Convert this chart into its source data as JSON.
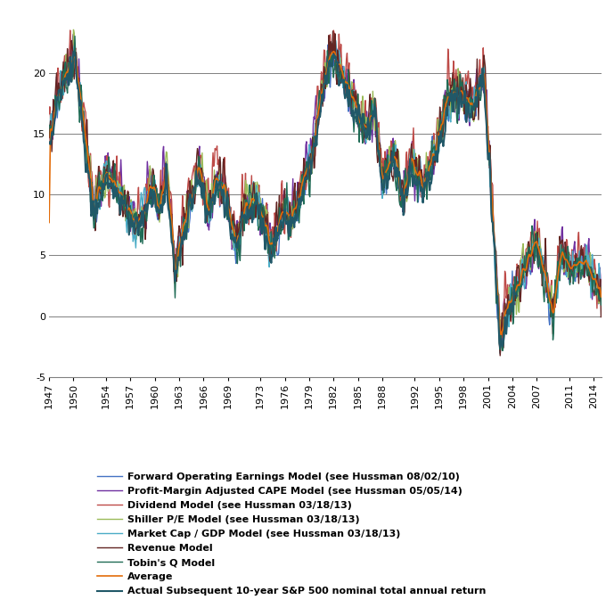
{
  "xlim": [
    1947,
    2015
  ],
  "ylim": [
    -5,
    25
  ],
  "yticks": [
    -5,
    0,
    5,
    10,
    15,
    20
  ],
  "xticks": [
    1947,
    1950,
    1954,
    1957,
    1960,
    1963,
    1966,
    1969,
    1973,
    1976,
    1979,
    1982,
    1985,
    1988,
    1992,
    1995,
    1998,
    2001,
    2004,
    2007,
    2011,
    2014
  ],
  "legend_labels": [
    "Forward Operating Earnings Model (see Hussman 08/02/10)",
    "Profit-Margin Adjusted CAPE Model (see Hussman 05/05/14)",
    "Dividend Model (see Hussman 03/18/13)",
    "Shiller P/E Model (see Hussman 03/18/13)",
    "Market Cap / GDP Model (see Hussman 03/18/13)",
    "Revenue Model",
    "Tobin's Q Model",
    "Average",
    "Actual Subsequent 10-year S&P 500 nominal total annual return"
  ],
  "legend_colors": [
    "#4472C4",
    "#7030A0",
    "#BE4B48",
    "#9BBB59",
    "#4BACC6",
    "#632523",
    "#1F6B55",
    "#E36C09",
    "#215868"
  ],
  "line_widths": [
    1.0,
    1.0,
    1.0,
    1.0,
    1.0,
    1.0,
    1.0,
    1.2,
    1.5
  ],
  "background_color": "#FFFFFF",
  "grid_color": "#808080",
  "tick_label_fontsize": 8,
  "legend_fontsize": 8
}
